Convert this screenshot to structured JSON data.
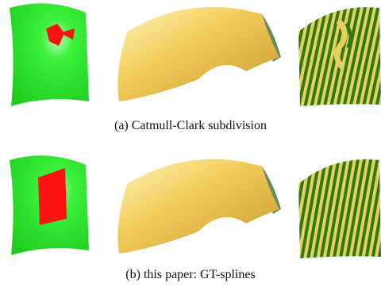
{
  "figure": {
    "subfigures": [
      {
        "caption": "(a)  Catmull-Clark subdivision"
      },
      {
        "caption": "(b)  this paper: GT-splines"
      }
    ],
    "colors": {
      "patch_green": "#22dd22",
      "defect_red": "#ff1111",
      "surface_yellow": "#f0c850",
      "underside_green": "#5f8f60",
      "stripe_green": "#2f7a10",
      "stripe_yellow": "#e8d060"
    }
  }
}
